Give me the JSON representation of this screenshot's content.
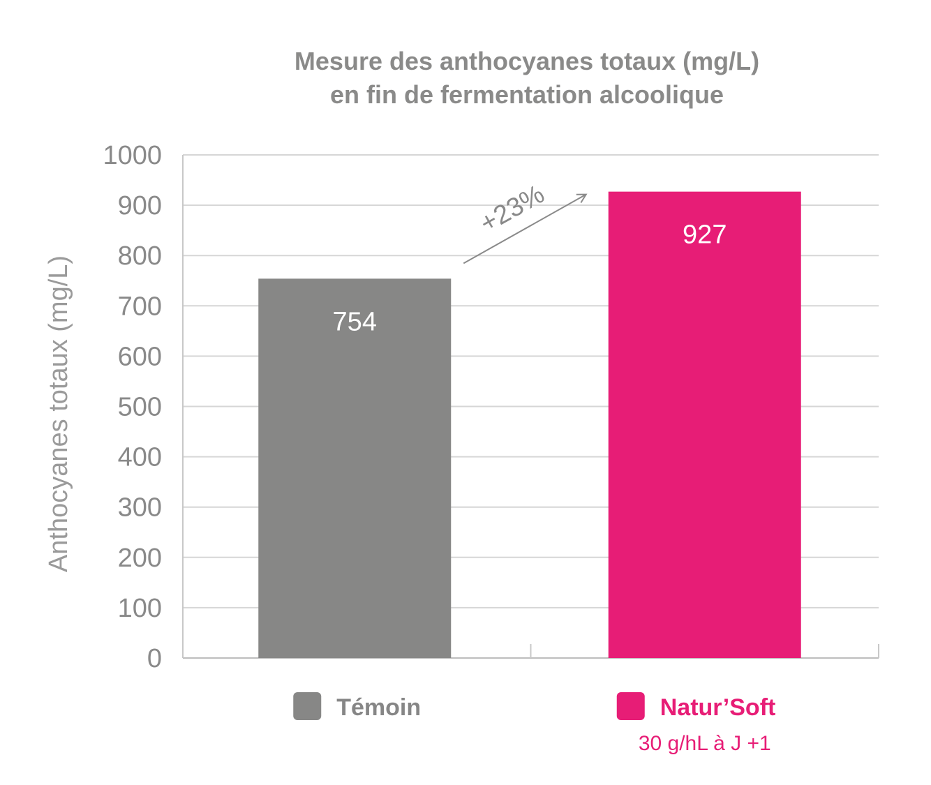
{
  "chart_data": {
    "type": "bar",
    "title_lines": [
      "Mesure des anthocyanes totaux (mg/L)",
      "en fin de fermentation alcoolique"
    ],
    "xlabel": "",
    "ylabel": "Anthocyanes totaux (mg/L)",
    "ylim": [
      0,
      1000
    ],
    "yticks": [
      0,
      100,
      200,
      300,
      400,
      500,
      600,
      700,
      800,
      900,
      1000
    ],
    "grid": true,
    "categories": [
      "Témoin",
      "Natur’Soft"
    ],
    "values": [
      754,
      927
    ],
    "value_labels": [
      "754",
      "927"
    ],
    "colors": [
      "#878786",
      "#e71d76"
    ],
    "legend": [
      {
        "label": "Témoin",
        "sublabel": "",
        "color": "#878786"
      },
      {
        "label": "Natur’Soft",
        "sublabel": "30 g/hL à J +1",
        "color": "#e71d76"
      }
    ],
    "annotation": {
      "text": "+23%",
      "from_category": 0,
      "to_category": 1
    }
  }
}
